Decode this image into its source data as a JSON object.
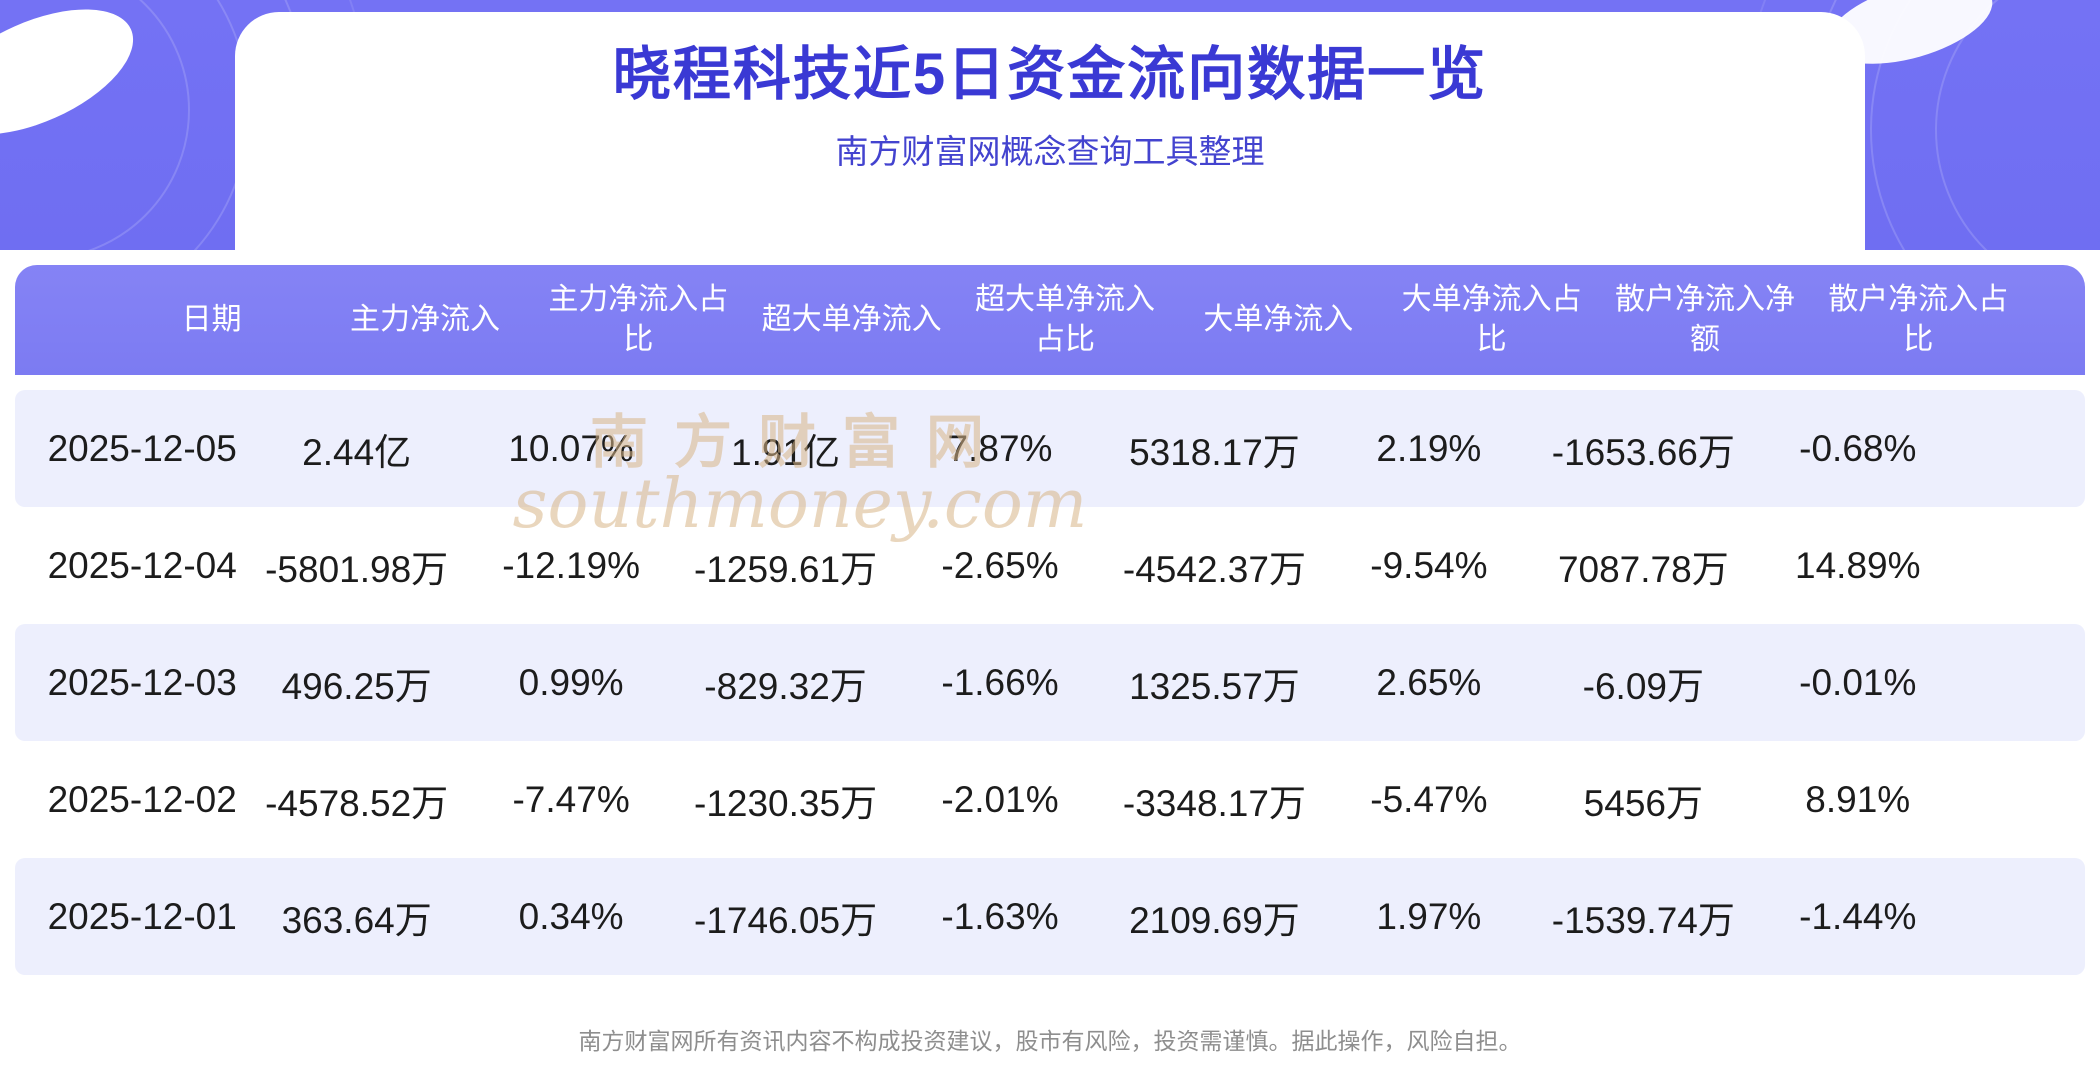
{
  "page": {
    "title": "晓程科技近5日资金流向数据一览",
    "subtitle": "南方财富网概念查询工具整理",
    "watermark": {
      "cn": "南方财富网",
      "en": "southmoney.com"
    },
    "footer": "南方财富网所有资讯内容不构成投资建议，股市有风险，投资需谨慎。据此操作，风险自担。"
  },
  "chart_data": {
    "type": "table",
    "title": "晓程科技近5日资金流向数据一览",
    "columns": [
      "日期",
      "主力净流入",
      "主力净流入占比",
      "超大单净流入",
      "超大单净流入占比",
      "大单净流入",
      "大单净流入占比",
      "散户净流入净额",
      "散户净流入占比"
    ],
    "rows": [
      [
        "2025-12-05",
        "2.44亿",
        "10.07%",
        "1.91亿",
        "7.87%",
        "5318.17万",
        "2.19%",
        "-1653.66万",
        "-0.68%"
      ],
      [
        "2025-12-04",
        "-5801.98万",
        "-12.19%",
        "-1259.61万",
        "-2.65%",
        "-4542.37万",
        "-9.54%",
        "7087.78万",
        "14.89%"
      ],
      [
        "2025-12-03",
        "496.25万",
        "0.99%",
        "-829.32万",
        "-1.66%",
        "1325.57万",
        "2.65%",
        "-6.09万",
        "-0.01%"
      ],
      [
        "2025-12-02",
        "-4578.52万",
        "-7.47%",
        "-1230.35万",
        "-2.01%",
        "-3348.17万",
        "-5.47%",
        "5456万",
        "8.91%"
      ],
      [
        "2025-12-01",
        "363.64万",
        "0.34%",
        "-1746.05万",
        "-1.63%",
        "2109.69万",
        "1.97%",
        "-1539.74万",
        "-1.44%"
      ]
    ]
  },
  "colors": {
    "banner": "#6f6ef2",
    "title_text": "#3a39d4",
    "subtitle_text": "#4343cf",
    "table_header_bg": "#7c7bf2",
    "row_alt_bg": "#edeffd",
    "cell_text": "#1c1c1c",
    "watermark": "#d8b688",
    "footer_text": "#8e8e8e"
  }
}
